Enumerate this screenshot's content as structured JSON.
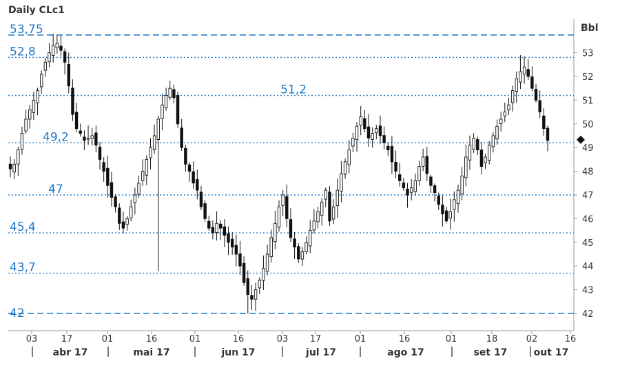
{
  "chart_data": {
    "type": "candlestick",
    "title": "Daily CLc1",
    "unit": "Bbl",
    "ylim": [
      41.8,
      54
    ],
    "y_ticks": [
      42,
      43,
      44,
      45,
      46,
      47,
      48,
      49,
      50,
      51,
      52,
      53
    ],
    "x_ticks": [
      "03",
      "17",
      "01",
      "16",
      "01",
      "16",
      "03",
      "17",
      "01",
      "16",
      "01",
      "18",
      "02",
      "16"
    ],
    "months": [
      "abr 17",
      "mai 17",
      "jun 17",
      "jul 17",
      "ago 17",
      "set 17",
      "out 17"
    ],
    "levels": [
      {
        "label": "53,75",
        "value": 53.75,
        "style": "dashed"
      },
      {
        "label": "52,8",
        "value": 52.8,
        "style": "dotted"
      },
      {
        "label": "51,2",
        "value": 51.2,
        "style": "dotted"
      },
      {
        "label": "49,2",
        "value": 49.2,
        "style": "dotted"
      },
      {
        "label": "47",
        "value": 47.0,
        "style": "dotted"
      },
      {
        "label": "45,4",
        "value": 45.4,
        "style": "dotted"
      },
      {
        "label": "43,7",
        "value": 43.7,
        "style": "dotted"
      },
      {
        "label": "42",
        "value": 42.0,
        "style": "dashed"
      }
    ],
    "last_value": 49.3,
    "close_series": [
      48.1,
      48.3,
      48.9,
      49.6,
      50.2,
      50.6,
      51.0,
      51.4,
      52.1,
      52.6,
      53.0,
      53.3,
      53.4,
      53.1,
      52.6,
      51.6,
      50.4,
      49.8,
      49.6,
      49.3,
      49.4,
      49.5,
      49.1,
      48.5,
      48.0,
      47.4,
      46.9,
      46.5,
      45.8,
      45.6,
      46.0,
      46.5,
      47.0,
      47.5,
      48.0,
      48.5,
      49.0,
      49.5,
      50.2,
      50.8,
      51.2,
      51.5,
      51.1,
      50.0,
      49.0,
      48.3,
      48.0,
      47.5,
      47.2,
      46.5,
      46.0,
      45.6,
      45.4,
      45.8,
      45.6,
      45.3,
      45.0,
      44.8,
      44.5,
      44.0,
      43.3,
      42.8,
      42.6,
      43.0,
      43.4,
      43.9,
      44.5,
      45.2,
      45.8,
      46.5,
      47.0,
      46.0,
      45.2,
      44.8,
      44.3,
      44.6,
      45.0,
      45.5,
      45.9,
      46.3,
      46.7,
      47.2,
      45.9,
      46.5,
      47.2,
      47.9,
      48.4,
      48.9,
      49.4,
      49.9,
      50.3,
      49.8,
      49.4,
      49.6,
      49.8,
      49.5,
      49.2,
      48.9,
      48.4,
      48.0,
      47.6,
      47.3,
      47.0,
      47.3,
      47.6,
      48.2,
      48.6,
      47.9,
      47.4,
      47.1,
      46.6,
      46.2,
      45.9,
      46.3,
      46.8,
      47.2,
      47.8,
      48.6,
      49.1,
      49.4,
      48.9,
      48.2,
      48.6,
      49.1,
      49.5,
      49.9,
      50.2,
      50.5,
      50.8,
      51.4,
      51.9,
      52.2,
      52.4,
      52.0,
      51.5,
      51.0,
      50.5,
      49.8,
      49.3
    ]
  }
}
